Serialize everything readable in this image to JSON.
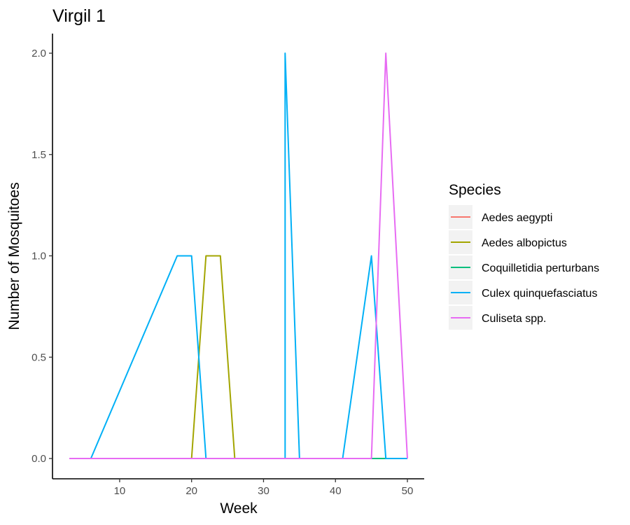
{
  "chart_data": {
    "type": "line",
    "title": "Virgil 1",
    "xlabel": "Week",
    "ylabel": "Number of Mosquitoes",
    "xlim": [
      3,
      50
    ],
    "ylim": [
      0,
      2
    ],
    "x_ticks": [
      10,
      20,
      30,
      40,
      50
    ],
    "y_ticks": [
      0,
      0.5,
      1,
      1.5,
      2
    ],
    "y_tick_labels": [
      "0.0",
      "0.5",
      "1.0",
      "1.5",
      "2.0"
    ],
    "grid": false,
    "legend": {
      "title": "Species",
      "placement": "right"
    },
    "series": [
      {
        "name": "Aedes aegypti",
        "color": "#F8766D",
        "points": [
          [
            3,
            0
          ],
          [
            50,
            0
          ]
        ]
      },
      {
        "name": "Aedes albopictus",
        "color": "#A3A500",
        "points": [
          [
            3,
            0
          ],
          [
            20,
            0
          ],
          [
            22,
            1
          ],
          [
            24,
            1
          ],
          [
            26,
            0
          ],
          [
            50,
            0
          ]
        ]
      },
      {
        "name": "Coquilletidia perturbans",
        "color": "#00BF7D",
        "points": [
          [
            3,
            0
          ],
          [
            50,
            0
          ]
        ]
      },
      {
        "name": "Culex quinquefasciatus",
        "color": "#00B0F6",
        "points": [
          [
            3,
            0
          ],
          [
            6,
            0
          ],
          [
            18,
            1
          ],
          [
            20,
            1
          ],
          [
            22,
            0
          ],
          [
            33,
            0
          ],
          [
            33,
            2
          ],
          [
            35,
            0
          ],
          [
            41,
            0
          ],
          [
            45,
            1
          ],
          [
            47,
            0
          ],
          [
            50,
            0
          ]
        ]
      },
      {
        "name": "Culiseta spp.",
        "color": "#E76BF3",
        "points": [
          [
            3,
            0
          ],
          [
            45,
            0
          ],
          [
            47,
            2
          ],
          [
            50,
            0
          ]
        ]
      }
    ]
  }
}
